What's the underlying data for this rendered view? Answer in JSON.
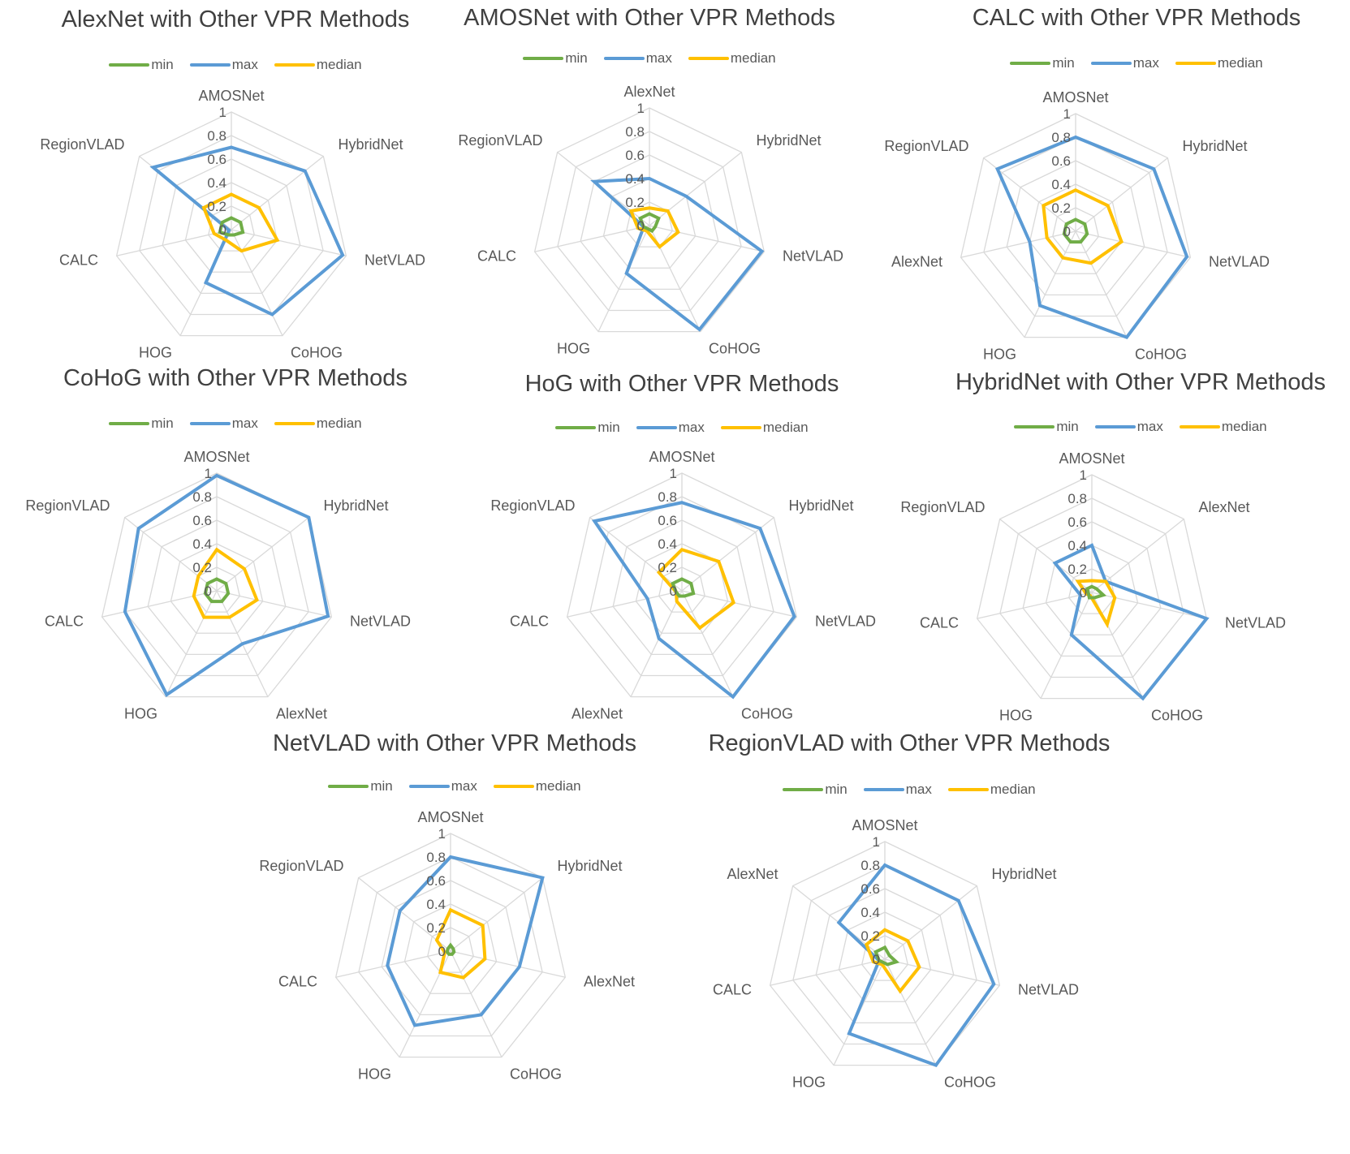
{
  "colors": {
    "min": "#70ad47",
    "max": "#5b9bd5",
    "median": "#ffc000",
    "grid": "#d9d9d9",
    "text": "#595959"
  },
  "legend_labels": [
    "min",
    "max",
    "median"
  ],
  "tick_labels": [
    "0",
    "0.2",
    "0.4",
    "0.6",
    "0.8",
    "1"
  ],
  "chart_data": [
    {
      "type": "radar",
      "title": "AlexNet with Other VPR Methods",
      "categories": [
        "AMOSNet",
        "HybridNet",
        "NetVLAD",
        "CoHOG",
        "HOG",
        "CALC",
        "RegionVLAD"
      ],
      "rlim": [
        0,
        1
      ],
      "series": [
        {
          "name": "min",
          "values": [
            0.1,
            0.1,
            0.1,
            0.05,
            0.05,
            0.1,
            0.1
          ]
        },
        {
          "name": "max",
          "values": [
            0.7,
            0.8,
            0.97,
            0.8,
            0.5,
            0.02,
            0.85
          ]
        },
        {
          "name": "median",
          "values": [
            0.3,
            0.3,
            0.4,
            0.2,
            0.1,
            0.15,
            0.3
          ]
        }
      ]
    },
    {
      "type": "radar",
      "title": "AMOSNet with Other VPR Methods",
      "categories": [
        "AlexNet",
        "HybridNet",
        "NetVLAD",
        "CoHOG",
        "HOG",
        "CALC",
        "RegionVLAD"
      ],
      "rlim": [
        0,
        1
      ],
      "series": [
        {
          "name": "min",
          "values": [
            0.1,
            0.1,
            0.05,
            0.05,
            0.03,
            0.05,
            0.1
          ]
        },
        {
          "name": "max",
          "values": [
            0.4,
            0.4,
            0.98,
            0.98,
            0.45,
            0.05,
            0.6
          ]
        },
        {
          "name": "median",
          "values": [
            0.15,
            0.2,
            0.25,
            0.2,
            0.05,
            0.1,
            0.2
          ]
        }
      ]
    },
    {
      "type": "radar",
      "title": "CALC with Other VPR Methods",
      "categories": [
        "AMOSNet",
        "HybridNet",
        "NetVLAD",
        "CoHOG",
        "HOG",
        "AlexNet",
        "RegionVLAD"
      ],
      "rlim": [
        0,
        1
      ],
      "series": [
        {
          "name": "min",
          "values": [
            0.1,
            0.1,
            0.1,
            0.1,
            0.1,
            0.1,
            0.1
          ]
        },
        {
          "name": "max",
          "values": [
            0.8,
            0.85,
            0.97,
            1.0,
            0.7,
            0.4,
            0.85
          ]
        },
        {
          "name": "median",
          "values": [
            0.35,
            0.35,
            0.4,
            0.3,
            0.25,
            0.25,
            0.35
          ]
        }
      ]
    },
    {
      "type": "radar",
      "title": "CoHoG with Other VPR Methods",
      "categories": [
        "AMOSNet",
        "HybridNet",
        "NetVLAD",
        "AlexNet",
        "HOG",
        "CALC",
        "RegionVLAD"
      ],
      "rlim": [
        0,
        1
      ],
      "series": [
        {
          "name": "min",
          "values": [
            0.1,
            0.1,
            0.1,
            0.1,
            0.1,
            0.1,
            0.1
          ]
        },
        {
          "name": "max",
          "values": [
            0.98,
            1.0,
            0.97,
            0.5,
            0.98,
            0.8,
            0.85
          ]
        },
        {
          "name": "median",
          "values": [
            0.35,
            0.3,
            0.35,
            0.25,
            0.25,
            0.2,
            0.2
          ]
        }
      ]
    },
    {
      "type": "radar",
      "title": "HoG with Other VPR Methods",
      "categories": [
        "AMOSNet",
        "HybridNet",
        "NetVLAD",
        "CoHOG",
        "AlexNet",
        "CALC",
        "RegionVLAD"
      ],
      "rlim": [
        0,
        1
      ],
      "series": [
        {
          "name": "min",
          "values": [
            0.1,
            0.1,
            0.1,
            0.05,
            0.05,
            0.05,
            0.1
          ]
        },
        {
          "name": "max",
          "values": [
            0.75,
            0.85,
            0.98,
            1.0,
            0.45,
            0.3,
            0.95
          ]
        },
        {
          "name": "median",
          "values": [
            0.35,
            0.4,
            0.45,
            0.35,
            0.1,
            0.05,
            0.25
          ]
        }
      ]
    },
    {
      "type": "radar",
      "title": "HybridNet with Other VPR Methods",
      "categories": [
        "AMOSNet",
        "AlexNet",
        "NetVLAD",
        "CoHOG",
        "HOG",
        "CALC",
        "RegionVLAD"
      ],
      "rlim": [
        0,
        1
      ],
      "series": [
        {
          "name": "min",
          "values": [
            0.05,
            0.05,
            0.1,
            0.05,
            0.05,
            0.03,
            0.05
          ]
        },
        {
          "name": "max",
          "values": [
            0.4,
            0.15,
            1.0,
            1.0,
            0.4,
            0.1,
            0.4
          ]
        },
        {
          "name": "median",
          "values": [
            0.1,
            0.15,
            0.2,
            0.3,
            0.03,
            0.05,
            0.15
          ]
        }
      ]
    },
    {
      "type": "radar",
      "title": "NetVLAD with Other VPR Methods",
      "categories": [
        "AMOSNet",
        "HybridNet",
        "AlexNet",
        "CoHOG",
        "HOG",
        "CALC",
        "RegionVLAD"
      ],
      "rlim": [
        0,
        1
      ],
      "series": [
        {
          "name": "min",
          "values": [
            0.05,
            0.03,
            0.03,
            0.03,
            0.03,
            0.03,
            0.03
          ]
        },
        {
          "name": "max",
          "values": [
            0.8,
            1.0,
            0.6,
            0.6,
            0.7,
            0.55,
            0.55
          ]
        },
        {
          "name": "median",
          "values": [
            0.35,
            0.35,
            0.3,
            0.25,
            0.2,
            0.05,
            0.15
          ]
        }
      ]
    },
    {
      "type": "radar",
      "title": "RegionVLAD with Other VPR Methods",
      "categories": [
        "AMOSNet",
        "HybridNet",
        "NetVLAD",
        "CoHOG",
        "HOG",
        "CALC",
        "AlexNet"
      ],
      "rlim": [
        0,
        1
      ],
      "series": [
        {
          "name": "min",
          "values": [
            0.1,
            0.05,
            0.1,
            0.05,
            0.03,
            0.05,
            0.1
          ]
        },
        {
          "name": "max",
          "values": [
            0.8,
            0.8,
            0.95,
            1.0,
            0.7,
            0.05,
            0.5
          ]
        },
        {
          "name": "median",
          "values": [
            0.25,
            0.25,
            0.3,
            0.3,
            0.05,
            0.1,
            0.2
          ]
        }
      ]
    }
  ]
}
